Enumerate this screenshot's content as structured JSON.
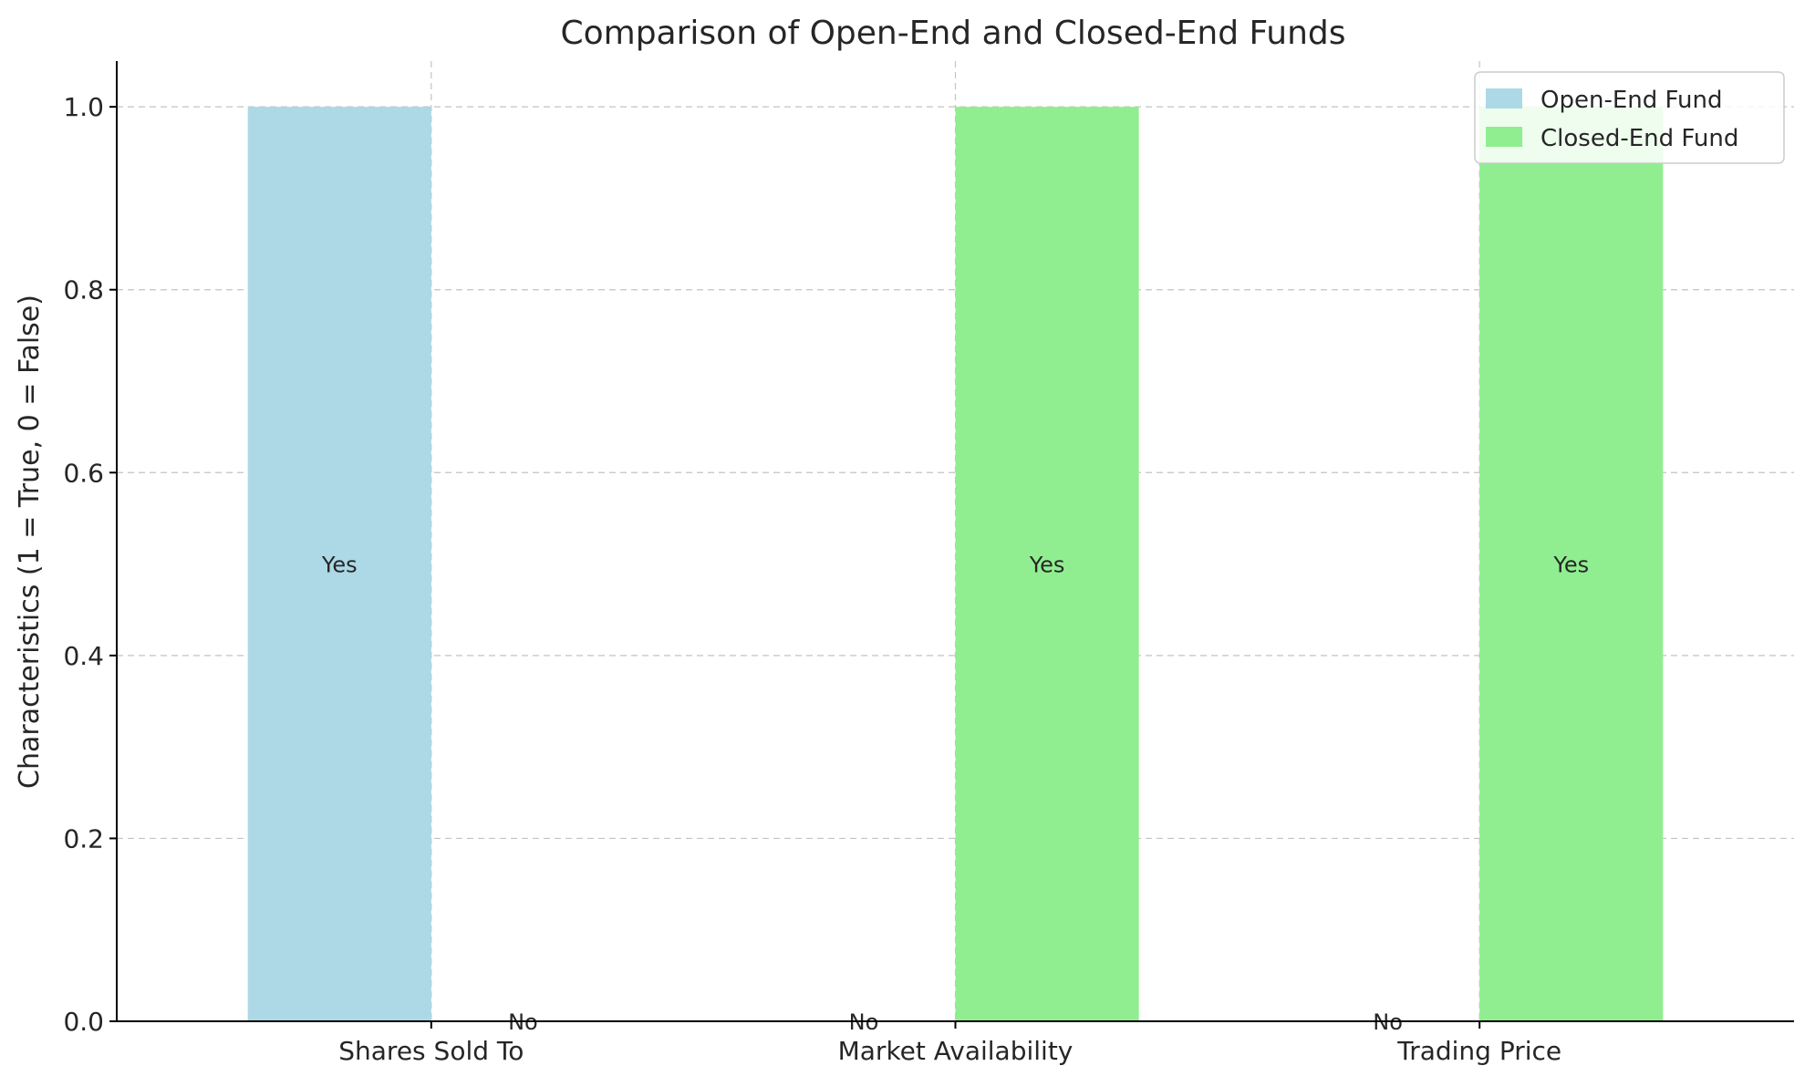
{
  "chart_data": {
    "type": "bar",
    "title": "Comparison of Open-End and Closed-End Funds",
    "xlabel": "",
    "ylabel": "Characteristics (1 = True, 0 = False)",
    "categories": [
      "Shares Sold To",
      "Market Availability",
      "Trading Price"
    ],
    "series": [
      {
        "name": "Open-End Fund",
        "values": [
          1,
          0,
          0
        ],
        "labels": [
          "Yes",
          "No",
          "No"
        ],
        "color": "#add8e6"
      },
      {
        "name": "Closed-End Fund",
        "values": [
          0,
          1,
          1
        ],
        "labels": [
          "No",
          "Yes",
          "Yes"
        ],
        "color": "#90ee90"
      }
    ],
    "ylim": [
      0,
      1.05
    ],
    "yticks": [
      "0.0",
      "0.2",
      "0.4",
      "0.6",
      "0.8",
      "1.0"
    ],
    "grid": true,
    "legend_position": "top-right"
  }
}
